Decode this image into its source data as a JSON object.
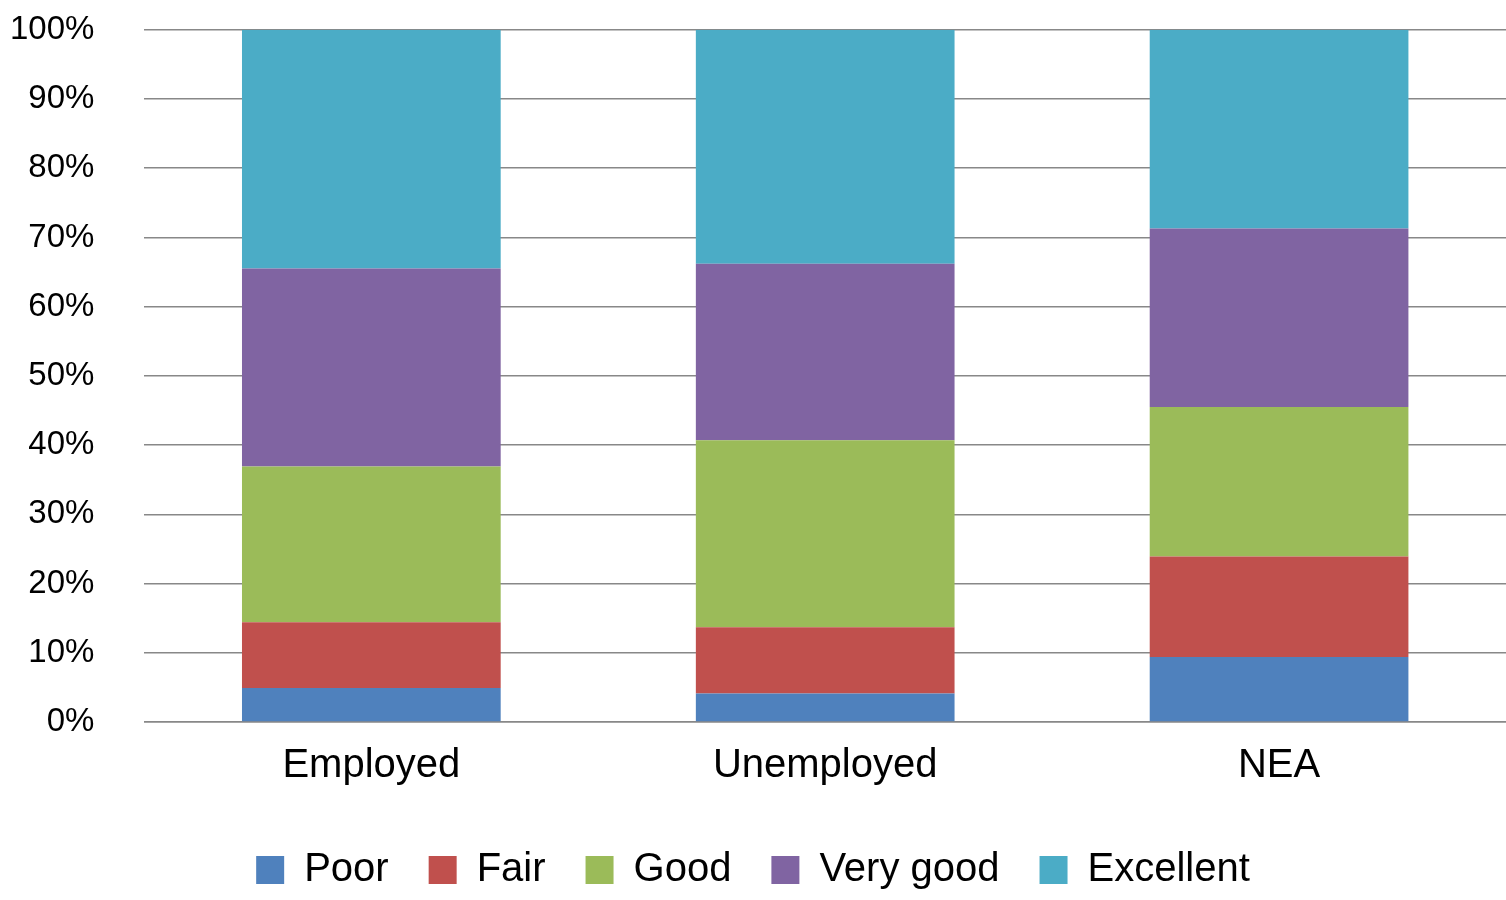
{
  "chart_data": {
    "type": "bar",
    "stacked": true,
    "categories": [
      "Employed",
      "Unemployed",
      "NEA"
    ],
    "series": [
      {
        "name": "Poor",
        "color": "#4f81bd",
        "values": [
          4.9,
          4.1,
          9.4
        ]
      },
      {
        "name": "Fair",
        "color": "#c0504d",
        "values": [
          9.5,
          9.6,
          14.5
        ]
      },
      {
        "name": "Good",
        "color": "#9bbb59",
        "values": [
          22.5,
          27.0,
          21.6
        ]
      },
      {
        "name": "Very good",
        "color": "#8064a2",
        "values": [
          28.6,
          25.5,
          25.8
        ]
      },
      {
        "name": "Excellent",
        "color": "#4bacc6",
        "values": [
          34.5,
          33.8,
          28.7
        ]
      }
    ],
    "ylim": [
      0,
      100
    ],
    "yticks": [
      {
        "value": 0,
        "label": "0%"
      },
      {
        "value": 10,
        "label": "10%"
      },
      {
        "value": 20,
        "label": "20%"
      },
      {
        "value": 30,
        "label": "30%"
      },
      {
        "value": 40,
        "label": "40%"
      },
      {
        "value": 50,
        "label": "50%"
      },
      {
        "value": 60,
        "label": "60%"
      },
      {
        "value": 70,
        "label": "70%"
      },
      {
        "value": 80,
        "label": "80%"
      },
      {
        "value": 90,
        "label": "90%"
      },
      {
        "value": 100,
        "label": "100%"
      }
    ],
    "grid": "y",
    "legend": "bottom"
  }
}
